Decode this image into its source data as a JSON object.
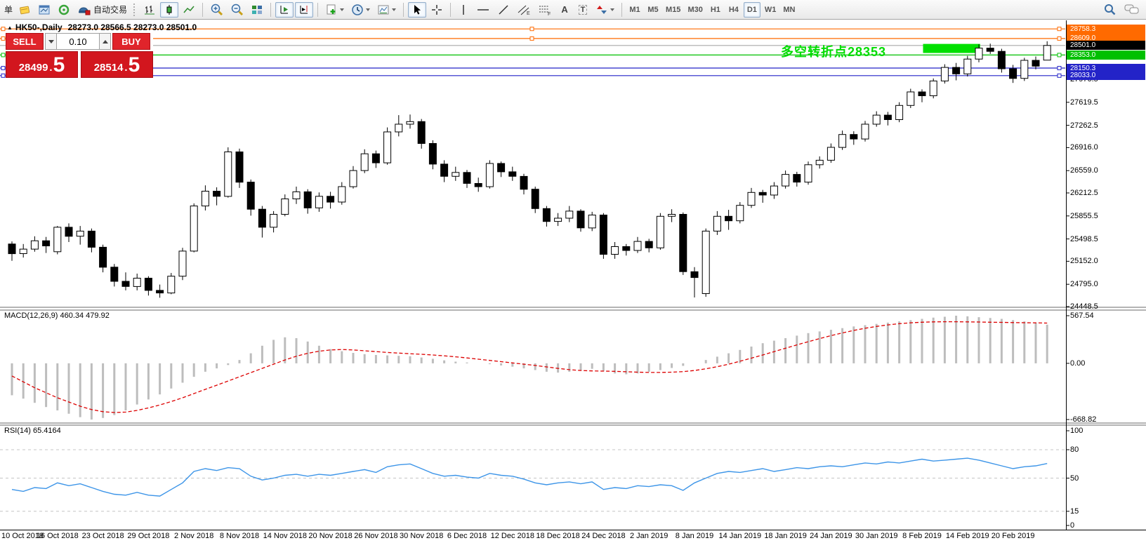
{
  "toolbar": {
    "partial_label": "单",
    "autotrading_label": "自动交易",
    "timeframes": [
      "M1",
      "M5",
      "M15",
      "M30",
      "H1",
      "H4",
      "D1",
      "W1",
      "MN"
    ],
    "active_timeframe": "D1",
    "letters": {
      "text": "A",
      "label": "T",
      "channel": "E",
      "fibo": "F"
    }
  },
  "chart_title": {
    "arrow": "▲",
    "symbol_period": "HK50-,Daily",
    "ohlc": "28273.0 28566.5 28273.0 28501.0"
  },
  "trade_panel": {
    "sell_label": "SELL",
    "buy_label": "BUY",
    "volume": "0.10",
    "sell_price": "28499",
    "sell_price_big": "5",
    "buy_price": "28514",
    "buy_price_big": "5",
    "point": "."
  },
  "annotation": {
    "text": "多空转折点28353",
    "color": "#00dc00"
  },
  "indicator_labels": {
    "macd": "MACD(12,26,9) 460.34 479.92",
    "rsi": "RSI(14) 65.4164"
  },
  "colors": {
    "bull": "#ffffff",
    "bear": "#000000",
    "wick": "#000000",
    "macd_hist": "#bdbdbd",
    "macd_signal": "#dd0000",
    "rsi_line": "#3d95e8",
    "rsi_level": "#c4c4c4",
    "orange_line": "#ff6a00",
    "green_line": "#00c000",
    "blue_line": "#2323c8",
    "bid_line": "#a8a8a8",
    "bid_label_bg": "#000000",
    "panel_red": "#d2161e",
    "button_red": "#e0242b",
    "rect_green": "#00e000",
    "annotation_green": "#00dc00"
  },
  "chart_data": [
    {
      "type": "candlestick",
      "symbol": "HK50-",
      "period": "Daily",
      "last_ohlc": {
        "open": 28273.0,
        "high": 28566.5,
        "low": 28273.0,
        "close": 28501.0
      },
      "ylim": [
        24430,
        28770
      ],
      "y_ticks": [
        27976.5,
        27619.5,
        27262.5,
        26916.0,
        26559.0,
        26212.5,
        25855.5,
        25498.5,
        25152.0,
        24795.0,
        24448.5
      ],
      "hlines": [
        {
          "price": 28758.3,
          "color": "#ff6a00",
          "selected": true,
          "mid_handle": true
        },
        {
          "price": 28609.0,
          "color": "#ff6a00",
          "selected": true,
          "mid_handle": true
        },
        {
          "price": 28501.0,
          "color": "#a8a8a8",
          "label_bg": "#000000",
          "bid": true
        },
        {
          "price": 28353.0,
          "color": "#00c000",
          "selected": true
        },
        {
          "price": 28150.3,
          "color": "#2323c8",
          "selected": true
        },
        {
          "price": 28033.0,
          "color": "#2323c8",
          "selected": true
        }
      ],
      "rect": {
        "from_index": 80.4,
        "to_index": 84.8,
        "price_top": 28525,
        "price_bottom": 28385,
        "color": "#00e000"
      },
      "ohlc": [
        [
          25420,
          25460,
          25160,
          25270
        ],
        [
          25270,
          25420,
          25210,
          25340
        ],
        [
          25340,
          25540,
          25300,
          25470
        ],
        [
          25470,
          25530,
          25280,
          25390
        ],
        [
          25300,
          25700,
          25260,
          25680
        ],
        [
          25680,
          25740,
          25450,
          25540
        ],
        [
          25540,
          25700,
          25410,
          25620
        ],
        [
          25620,
          25660,
          25290,
          25370
        ],
        [
          25370,
          25410,
          24980,
          25060
        ],
        [
          25060,
          25110,
          24760,
          24840
        ],
        [
          24840,
          24980,
          24700,
          24760
        ],
        [
          24760,
          24960,
          24700,
          24890
        ],
        [
          24890,
          24920,
          24620,
          24700
        ],
        [
          24700,
          24790,
          24586,
          24660
        ],
        [
          24660,
          24970,
          24640,
          24920
        ],
        [
          24920,
          25360,
          24860,
          25310
        ],
        [
          25310,
          26050,
          25290,
          26010
        ],
        [
          26010,
          26330,
          25940,
          26240
        ],
        [
          26240,
          26300,
          26020,
          26160
        ],
        [
          26160,
          26920,
          26140,
          26850
        ],
        [
          26850,
          26900,
          26290,
          26380
        ],
        [
          26380,
          26420,
          25860,
          25960
        ],
        [
          25960,
          26010,
          25520,
          25680
        ],
        [
          25680,
          25930,
          25600,
          25880
        ],
        [
          25880,
          26190,
          25850,
          26120
        ],
        [
          26120,
          26310,
          26040,
          26230
        ],
        [
          26230,
          26270,
          25890,
          25980
        ],
        [
          25980,
          26220,
          25920,
          26160
        ],
        [
          26160,
          26230,
          25970,
          26070
        ],
        [
          26070,
          26380,
          26030,
          26310
        ],
        [
          26310,
          26630,
          26280,
          26560
        ],
        [
          26560,
          26890,
          26520,
          26820
        ],
        [
          26820,
          26870,
          26600,
          26680
        ],
        [
          26680,
          27230,
          26650,
          27160
        ],
        [
          27160,
          27420,
          27090,
          27280
        ],
        [
          27280,
          27430,
          27210,
          27320
        ],
        [
          27320,
          27360,
          26900,
          26980
        ],
        [
          26980,
          27030,
          26580,
          26660
        ],
        [
          26660,
          26720,
          26380,
          26470
        ],
        [
          26470,
          26620,
          26400,
          26530
        ],
        [
          26530,
          26570,
          26290,
          26360
        ],
        [
          26360,
          26450,
          26230,
          26310
        ],
        [
          26310,
          26720,
          26280,
          26670
        ],
        [
          26670,
          26700,
          26460,
          26540
        ],
        [
          26540,
          26620,
          26400,
          26470
        ],
        [
          26470,
          26510,
          26190,
          26270
        ],
        [
          26270,
          26310,
          25900,
          25970
        ],
        [
          25970,
          26010,
          25690,
          25770
        ],
        [
          25770,
          25900,
          25700,
          25820
        ],
        [
          25820,
          26010,
          25760,
          25930
        ],
        [
          25930,
          25960,
          25610,
          25670
        ],
        [
          25670,
          25920,
          25620,
          25870
        ],
        [
          25870,
          25900,
          25190,
          25260
        ],
        [
          25260,
          25450,
          25190,
          25380
        ],
        [
          25380,
          25420,
          25240,
          25320
        ],
        [
          25320,
          25530,
          25280,
          25460
        ],
        [
          25460,
          25500,
          25290,
          25360
        ],
        [
          25360,
          25900,
          25330,
          25850
        ],
        [
          25850,
          25960,
          25760,
          25880
        ],
        [
          25880,
          25910,
          24940,
          24990
        ],
        [
          24990,
          25060,
          24590,
          24900
        ],
        [
          24650,
          25660,
          24600,
          25620
        ],
        [
          25620,
          25930,
          25560,
          25850
        ],
        [
          25850,
          25950,
          25640,
          25780
        ],
        [
          25780,
          26070,
          25740,
          26020
        ],
        [
          26020,
          26290,
          25980,
          26220
        ],
        [
          26220,
          26260,
          26060,
          26180
        ],
        [
          26180,
          26380,
          26120,
          26320
        ],
        [
          26320,
          26560,
          26280,
          26500
        ],
        [
          26500,
          26540,
          26310,
          26380
        ],
        [
          26380,
          26700,
          26340,
          26650
        ],
        [
          26650,
          26780,
          26590,
          26720
        ],
        [
          26720,
          26980,
          26680,
          26920
        ],
        [
          26920,
          27180,
          26880,
          27120
        ],
        [
          27120,
          27170,
          26960,
          27050
        ],
        [
          27050,
          27330,
          27010,
          27280
        ],
        [
          27280,
          27480,
          27240,
          27420
        ],
        [
          27420,
          27470,
          27260,
          27350
        ],
        [
          27350,
          27620,
          27310,
          27570
        ],
        [
          27570,
          27830,
          27530,
          27780
        ],
        [
          27780,
          27820,
          27620,
          27720
        ],
        [
          27720,
          27990,
          27680,
          27950
        ],
        [
          27950,
          28210,
          27910,
          28160
        ],
        [
          28160,
          28230,
          27960,
          28060
        ],
        [
          28060,
          28340,
          28020,
          28290
        ],
        [
          28290,
          28520,
          28240,
          28460
        ],
        [
          28460,
          28530,
          28370,
          28410
        ],
        [
          28410,
          28450,
          28080,
          28140
        ],
        [
          28140,
          28200,
          27920,
          27990
        ],
        [
          27990,
          28310,
          27950,
          28270
        ],
        [
          28270,
          28330,
          28130,
          28180
        ],
        [
          28273,
          28566.5,
          28273,
          28501
        ]
      ]
    },
    {
      "type": "bar",
      "name": "MACD(12,26,9)",
      "main_value": 460.34,
      "signal_value": 479.92,
      "ylim": [
        -710,
        626
      ],
      "y_ticks": [
        567.54,
        0,
        -668.82
      ],
      "tick_labels": [
        "567.54",
        "0.00",
        "-668.82"
      ],
      "hist": [
        -380,
        -420,
        -470,
        -520,
        -560,
        -600,
        -640,
        -668.82,
        -650,
        -615,
        -560,
        -490,
        -430,
        -370,
        -300,
        -230,
        -160,
        -100,
        -60,
        -20,
        40,
        120,
        210,
        280,
        310,
        300,
        260,
        210,
        170,
        145,
        125,
        110,
        100,
        95,
        90,
        85,
        70,
        55,
        35,
        20,
        10,
        0,
        -10,
        -25,
        -40,
        -60,
        -80,
        -100,
        -110,
        -100,
        -85,
        -65,
        -90,
        -120,
        -130,
        -120,
        -100,
        -80,
        -55,
        -30,
        0,
        40,
        80,
        120,
        160,
        200,
        240,
        270,
        300,
        330,
        360,
        380,
        400,
        420,
        440,
        455,
        470,
        485,
        500,
        515,
        530,
        545,
        555,
        567.54,
        560,
        550,
        540,
        530,
        515,
        500,
        480,
        460.34
      ],
      "signal": [
        -150,
        -220,
        -290,
        -350,
        -410,
        -460,
        -510,
        -550,
        -575,
        -585,
        -580,
        -560,
        -530,
        -495,
        -455,
        -410,
        -360,
        -310,
        -260,
        -210,
        -160,
        -110,
        -60,
        -10,
        40,
        85,
        120,
        145,
        160,
        165,
        160,
        150,
        140,
        130,
        122,
        115,
        108,
        100,
        90,
        78,
        65,
        50,
        35,
        20,
        5,
        -10,
        -25,
        -42,
        -60,
        -75,
        -85,
        -90,
        -92,
        -95,
        -100,
        -105,
        -108,
        -108,
        -105,
        -98,
        -85,
        -65,
        -40,
        -10,
        25,
        62,
        100,
        140,
        180,
        220,
        258,
        295,
        330,
        362,
        392,
        418,
        440,
        458,
        472,
        483,
        490,
        494,
        496,
        496,
        494,
        492,
        490,
        488,
        486,
        484,
        482,
        479.92
      ]
    },
    {
      "type": "line",
      "name": "RSI(14)",
      "value": 65.4164,
      "ylim": [
        0,
        100
      ],
      "levels": [
        80,
        50,
        15
      ],
      "y_ticks": [
        100,
        80,
        50,
        15,
        0
      ],
      "values": [
        38,
        36,
        40,
        39,
        45,
        42,
        44,
        40,
        36,
        33,
        32,
        35,
        32,
        31,
        38,
        45,
        57,
        60,
        58,
        61,
        60,
        52,
        48,
        50,
        53,
        54,
        52,
        54,
        53,
        55,
        57,
        59,
        56,
        62,
        64,
        65,
        60,
        55,
        52,
        53,
        51,
        50,
        55,
        53,
        52,
        49,
        45,
        43,
        45,
        46,
        44,
        46,
        38,
        40,
        39,
        42,
        41,
        43,
        42,
        37,
        45,
        50,
        55,
        57,
        56,
        58,
        60,
        57,
        59,
        61,
        60,
        62,
        63,
        62,
        64,
        66,
        65,
        67,
        66,
        68,
        70,
        68,
        69,
        70,
        71,
        69,
        66,
        63,
        60,
        62,
        63,
        65.4164
      ]
    }
  ],
  "x_labels": [
    "10 Oct 2018",
    "16 Oct 2018",
    "23 Oct 2018",
    "29 Oct 2018",
    "2 Nov 2018",
    "8 Nov 2018",
    "14 Nov 2018",
    "20 Nov 2018",
    "26 Nov 2018",
    "30 Nov 2018",
    "6 Dec 2018",
    "12 Dec 2018",
    "18 Dec 2018",
    "24 Dec 2018",
    "2 Jan 2019",
    "8 Jan 2019",
    "14 Jan 2019",
    "18 Jan 2019",
    "24 Jan 2019",
    "30 Jan 2019",
    "8 Feb 2019",
    "14 Feb 2019",
    "20 Feb 2019"
  ]
}
